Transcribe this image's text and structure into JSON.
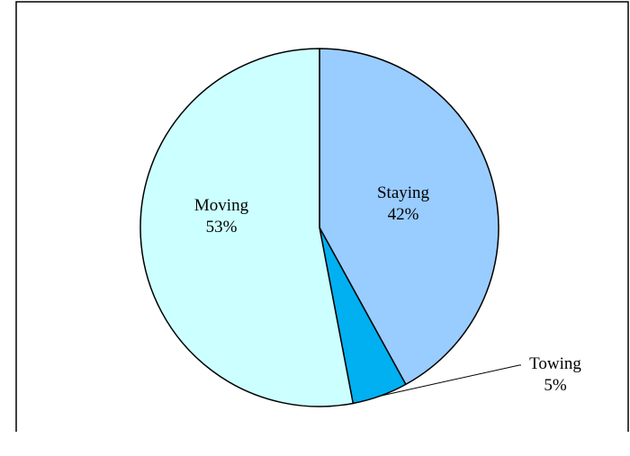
{
  "chart_data": {
    "type": "pie",
    "categories": [
      "Staying",
      "Towing",
      "Moving"
    ],
    "values": [
      42,
      5,
      53
    ],
    "labels": [
      "42%",
      "5%",
      "53%"
    ],
    "start": "12 o'clock",
    "direction": "clockwise",
    "colors": [
      "#99ccff",
      "#00b0f0",
      "#ccffff"
    ],
    "border_color": "#000000",
    "title": "",
    "legend": "none"
  }
}
